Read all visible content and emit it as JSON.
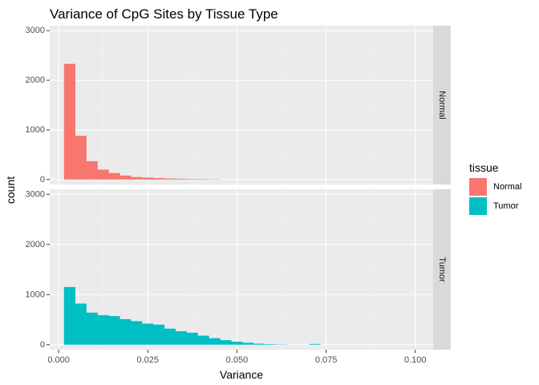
{
  "chart_data": {
    "type": "bar",
    "title": "Variance of CpG Sites by Tissue Type",
    "xlabel": "Variance",
    "ylabel": "count",
    "xlim": [
      -0.0025,
      0.105
    ],
    "ylim": [
      -100,
      3100
    ],
    "x_ticks": [
      0.0,
      0.025,
      0.05,
      0.075,
      0.1
    ],
    "x_tick_labels": [
      "0.000",
      "0.025",
      "0.050",
      "0.075",
      "0.100"
    ],
    "y_ticks": [
      0,
      1000,
      2000,
      3000
    ],
    "y_tick_labels": [
      "0",
      "1000",
      "2000",
      "3000"
    ],
    "bin_width": 0.003125,
    "bin_start": 0.0015,
    "legend": {
      "title": "tissue",
      "position": "right",
      "entries": [
        {
          "label": "Normal",
          "color": "#F8766D"
        },
        {
          "label": "Tumor",
          "color": "#00BFC4"
        }
      ]
    },
    "facets": [
      {
        "strip_label": "Normal",
        "color": "#F8766D",
        "counts": [
          2330,
          880,
          370,
          200,
          130,
          80,
          50,
          40,
          30,
          20,
          15,
          10,
          10,
          5,
          0,
          0,
          0,
          0,
          0,
          0,
          0,
          0,
          0,
          0,
          0,
          0,
          0,
          0,
          0,
          0,
          0,
          0
        ]
      },
      {
        "strip_label": "Tumor",
        "color": "#00BFC4",
        "counts": [
          1150,
          820,
          640,
          590,
          570,
          510,
          470,
          420,
          400,
          320,
          270,
          240,
          180,
          130,
          90,
          60,
          40,
          20,
          10,
          5,
          0,
          0,
          15,
          0,
          0,
          0,
          0,
          0,
          0,
          0,
          0,
          0
        ]
      }
    ],
    "grid": true,
    "background": "#EBEBEB",
    "strip_background": "#D9D9D9"
  }
}
